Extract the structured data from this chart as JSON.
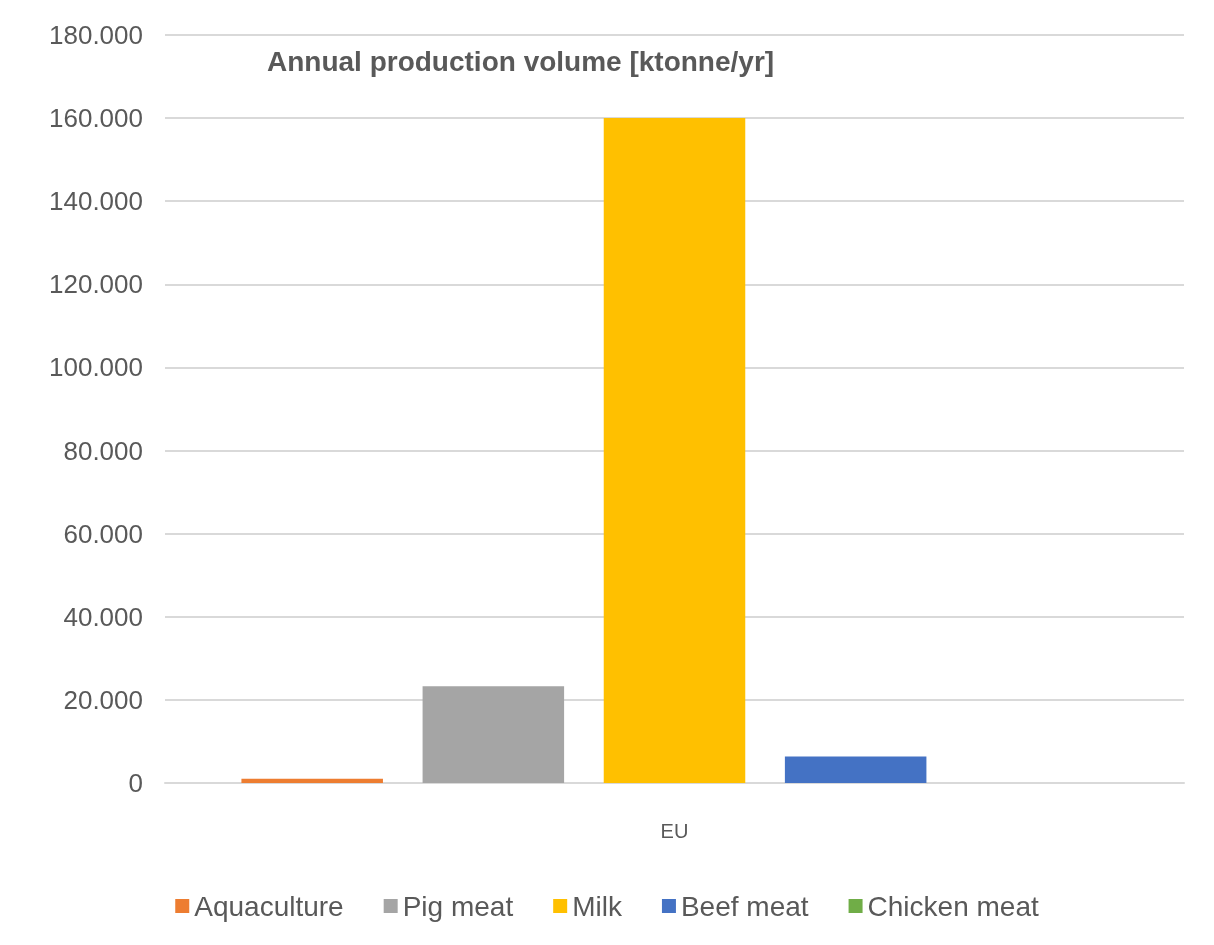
{
  "chart_data": {
    "type": "bar",
    "title": "Annual production volume [ktonne/yr]",
    "categories": [
      "EU"
    ],
    "series": [
      {
        "name": "Aquaculture",
        "color": "#ed7d31",
        "values": [
          1000
        ]
      },
      {
        "name": "Pig meat",
        "color": "#a5a5a5",
        "values": [
          23300
        ]
      },
      {
        "name": "Milk",
        "color": "#ffc000",
        "values": [
          160000
        ]
      },
      {
        "name": "Beef meat",
        "color": "#4472c4",
        "values": [
          6400
        ]
      },
      {
        "name": "Chicken meat",
        "color": "#70ad47",
        "values": [
          0
        ]
      }
    ],
    "ylim": [
      0,
      180000
    ],
    "yticks": [
      0,
      {
        "value": 20000,
        "label": "20.000"
      },
      {
        "value": 40000,
        "label": "40.000"
      },
      {
        "value": 60000,
        "label": "60.000"
      },
      {
        "value": 80000,
        "label": "80.000"
      },
      {
        "value": 100000,
        "label": "100.000"
      },
      {
        "value": 120000,
        "label": "120.000"
      },
      {
        "value": 140000,
        "label": "140.000"
      },
      {
        "value": 160000,
        "label": "160.000"
      },
      {
        "value": 180000,
        "label": "180.000"
      }
    ],
    "grid": "y",
    "legend": "bottom"
  }
}
